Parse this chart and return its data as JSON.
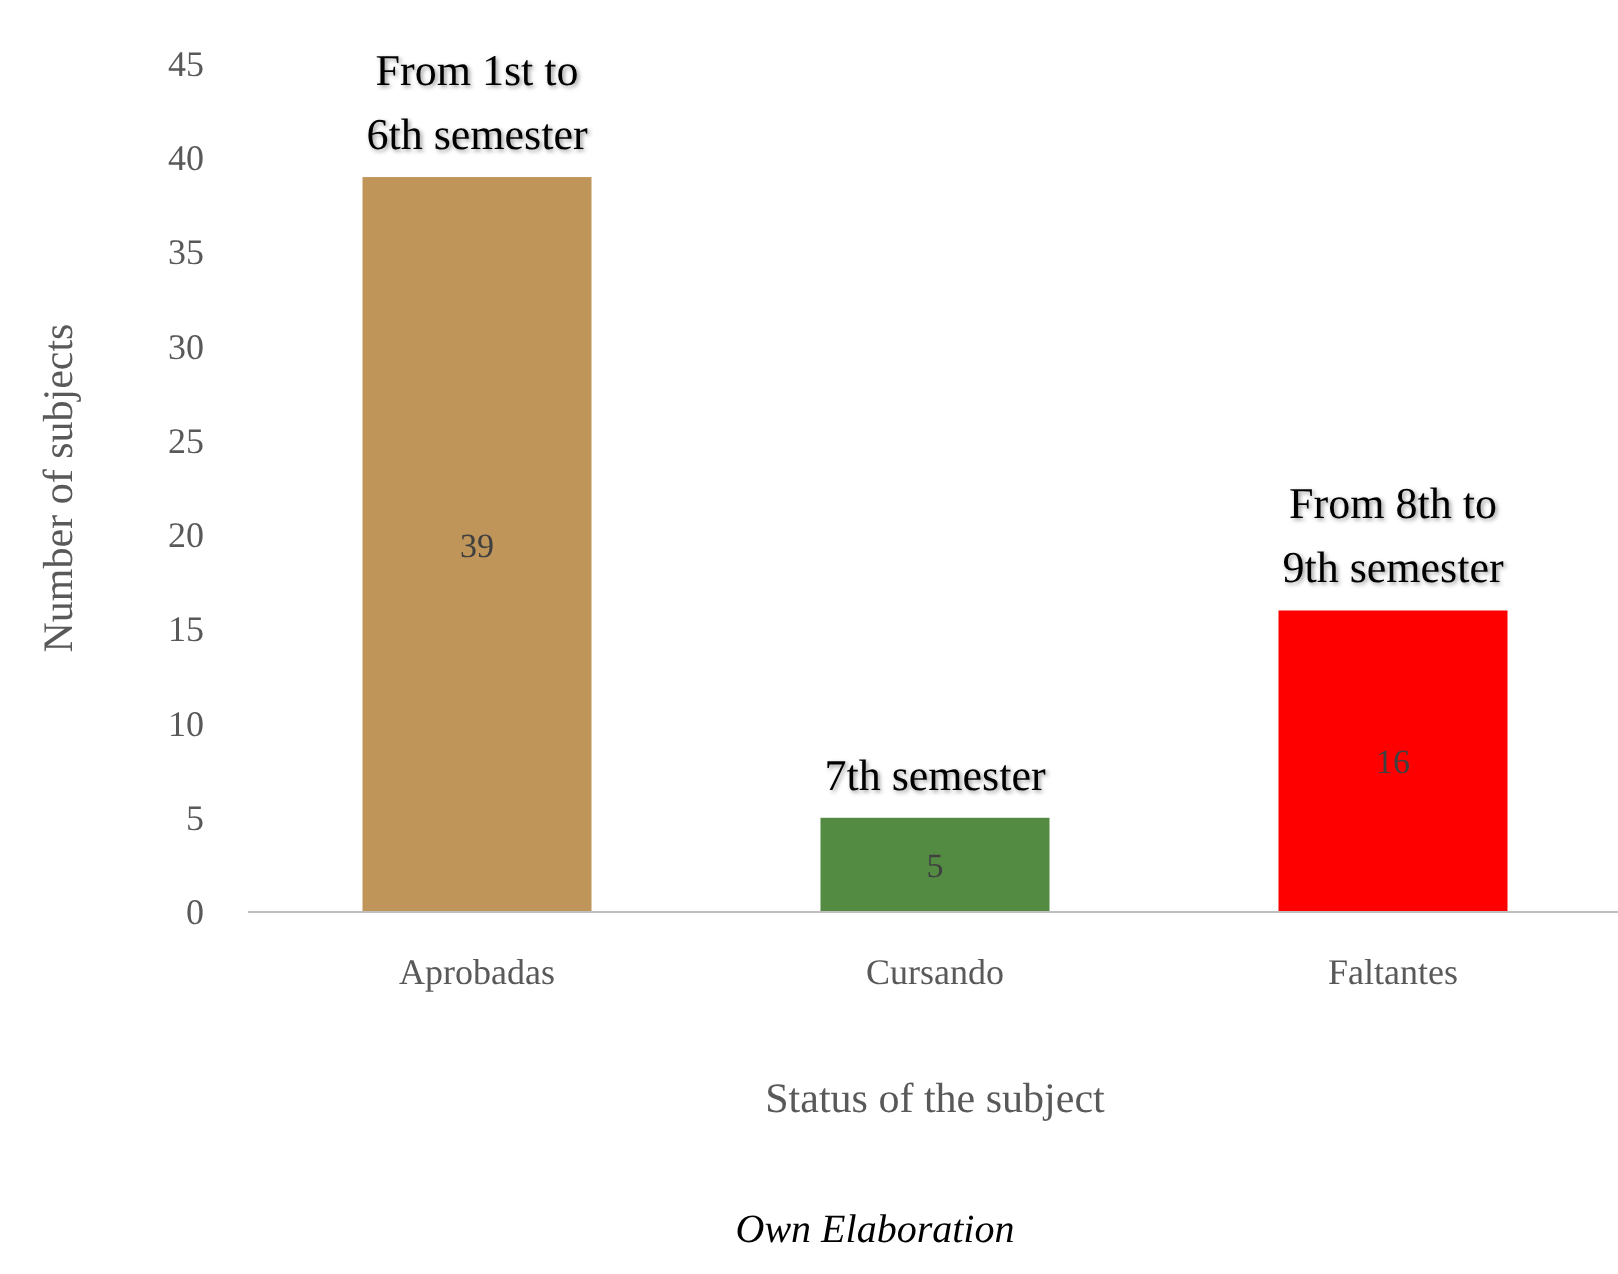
{
  "chart_data": {
    "type": "bar",
    "xlabel": "Status of the subject",
    "ylabel": "Number of subjects",
    "categories": [
      "Aprobadas",
      "Cursando",
      "Faltantes"
    ],
    "values": [
      39,
      5,
      16
    ],
    "colors": [
      "#c0955a",
      "#538b43",
      "#ff0000"
    ],
    "ylim": [
      0,
      45
    ],
    "yticks": [
      0,
      5,
      10,
      15,
      20,
      25,
      30,
      35,
      40,
      45
    ],
    "grid": false,
    "data_labels": true,
    "annotations": [
      {
        "text": "From 1st to 6th semester",
        "x": "Aprobadas",
        "y": 39
      },
      {
        "text": "7th semester",
        "x": "Cursando",
        "y": 5
      },
      {
        "text": "From 8th to 9th semester",
        "x": "Faltantes",
        "y": 16
      },
      "Own Elaboration"
    ]
  }
}
